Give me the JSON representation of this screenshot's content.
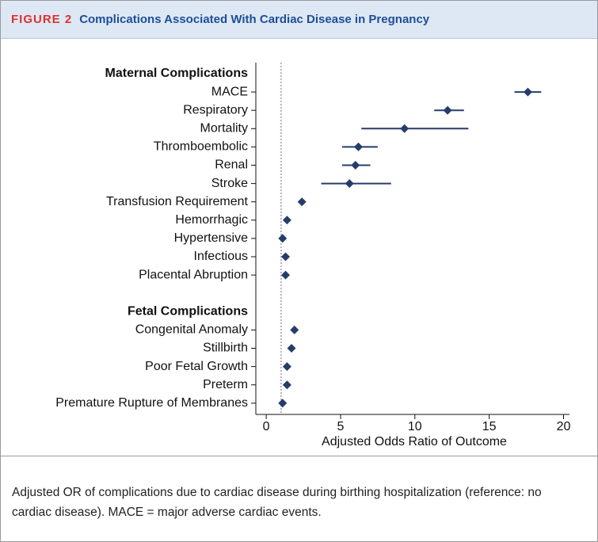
{
  "header": {
    "label": "FIGURE 2",
    "title": "Complications Associated With Cardiac Disease in Pregnancy"
  },
  "chart_data": {
    "type": "forest",
    "xlabel": "Adjusted Odds Ratio of Outcome",
    "xlim": [
      -0.7,
      20.4
    ],
    "xticks": [
      0,
      5,
      10,
      15,
      20
    ],
    "reference_line": 1,
    "color": "#263d6b",
    "reference_color": "#8a7fc0",
    "groups": [
      {
        "name": "Maternal Complications",
        "categories": [
          "MACE",
          "Respiratory",
          "Mortality",
          "Thromboembolic",
          "Renal",
          "Stroke",
          "Transfusion Requirement",
          "Hemorrhagic",
          "Hypertensive",
          "Infectious",
          "Placental Abruption"
        ],
        "values": [
          17.6,
          12.2,
          9.3,
          6.2,
          6.0,
          5.6,
          2.4,
          1.4,
          1.1,
          1.3,
          1.3
        ],
        "lower": [
          16.7,
          11.3,
          6.4,
          5.1,
          5.1,
          3.7,
          2.3,
          1.35,
          1.07,
          1.25,
          1.25
        ],
        "upper": [
          18.5,
          13.3,
          13.6,
          7.5,
          7.0,
          8.4,
          2.5,
          1.45,
          1.13,
          1.35,
          1.35
        ]
      },
      {
        "name": "Fetal Complications",
        "categories": [
          "Congenital Anomaly",
          "Stillbirth",
          "Poor Fetal Growth",
          "Preterm",
          "Premature Rupture of Membranes"
        ],
        "values": [
          1.9,
          1.7,
          1.4,
          1.4,
          1.1
        ],
        "lower": [
          1.85,
          1.6,
          1.35,
          1.35,
          1.05
        ],
        "upper": [
          1.95,
          1.8,
          1.45,
          1.45,
          1.15
        ]
      }
    ]
  },
  "caption": "Adjusted OR of complications due to cardiac disease during birthing hospitalization (reference: no cardiac disease). MACE = major adverse cardiac events."
}
